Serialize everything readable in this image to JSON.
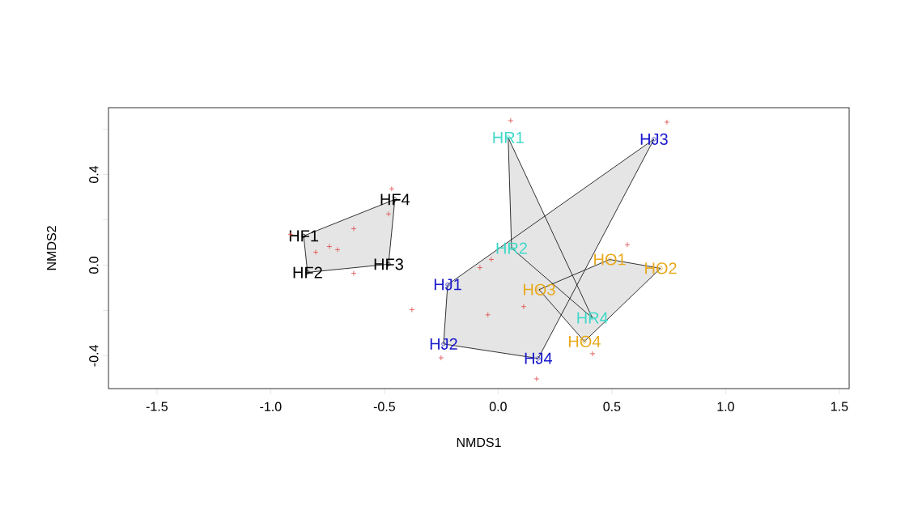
{
  "chart_data": {
    "type": "scatter",
    "xlabel": "NMDS1",
    "ylabel": "NMDS2",
    "xlim": [
      -1.713,
      1.543
    ],
    "ylim": [
      -0.545,
      0.695
    ],
    "xticks": [
      {
        "value": -1.5,
        "label": "-1.5"
      },
      {
        "value": -1.0,
        "label": "-1.0"
      },
      {
        "value": -0.5,
        "label": "-0.5"
      },
      {
        "value": 0,
        "label": "0.0"
      },
      {
        "value": 0.5,
        "label": "0.5"
      },
      {
        "value": 1.0,
        "label": "1.0"
      },
      {
        "value": 1.5,
        "label": "1.5"
      }
    ],
    "yticks": [
      {
        "value": -0.4,
        "label": "-0.4"
      },
      {
        "value": -0.2,
        "label": null
      },
      {
        "value": 0,
        "label": "0.0"
      },
      {
        "value": 0.2,
        "label": null
      },
      {
        "value": 0.4,
        "label": "0.4"
      },
      {
        "value": 0.6,
        "label": null
      }
    ],
    "series": [
      {
        "type": "area",
        "color": "#e5e5e5",
        "x": [
          -0.855,
          -0.454,
          -0.482,
          -0.838
        ],
        "values": [
          0.129,
          0.29,
          0.004,
          -0.032
        ]
      },
      {
        "type": "area",
        "color": "#e5e5e5",
        "x": [
          -0.222,
          0.685,
          0.176,
          -0.24
        ],
        "values": [
          -0.086,
          0.556,
          -0.412,
          -0.348
        ]
      },
      {
        "type": "area",
        "color": "#e5e5e5",
        "x": [
          0.044,
          0.414,
          0.059
        ],
        "values": [
          0.563,
          -0.233,
          0.075
        ]
      },
      {
        "type": "area",
        "color": "#e5e5e5",
        "x": [
          0.18,
          0.49,
          0.714,
          0.379
        ],
        "values": [
          -0.108,
          0.025,
          -0.014,
          -0.337
        ]
      },
      {
        "marker": "cross",
        "color": "#e04848",
        "x": [
          -0.468,
          -0.635,
          -0.482,
          -0.742,
          -0.706,
          -0.802,
          -0.635,
          -0.913,
          0.055,
          -0.379,
          -0.045,
          0.112,
          -0.251,
          0.169,
          -0.08,
          -0.03,
          0.742,
          0.568,
          0.415
        ],
        "values": [
          0.337,
          0.161,
          0.226,
          0.082,
          0.068,
          0.057,
          -0.036,
          0.136,
          0.638,
          -0.197,
          -0.219,
          -0.183,
          -0.409,
          -0.502,
          -0.011,
          0.025,
          0.631,
          0.09,
          -0.391
        ]
      },
      {
        "marker": "circle",
        "color": "#000000",
        "x": [
          -0.855,
          -0.454,
          -0.482,
          -0.838
        ],
        "values": [
          0.129,
          0.29,
          0.004,
          -0.032
        ],
        "value_labels": [
          "HF1",
          "HF4",
          "HF3",
          "HF2"
        ]
      },
      {
        "marker": "circle",
        "color": "#1a1acd",
        "x": [
          -0.222,
          0.685,
          0.176,
          -0.24
        ],
        "values": [
          -0.086,
          0.556,
          -0.412,
          -0.348
        ],
        "value_labels": [
          "HJ1",
          "HJ3",
          "HJ4",
          "HJ2"
        ]
      },
      {
        "marker": "circle",
        "color": "#40d8c8",
        "x": [
          0.044,
          0.414,
          0.059
        ],
        "values": [
          0.563,
          -0.233,
          0.075
        ],
        "value_labels": [
          "HR1",
          "HR4",
          "HR2"
        ]
      },
      {
        "marker": "circle",
        "color": "#e8a81a",
        "x": [
          0.18,
          0.49,
          0.714,
          0.379
        ],
        "values": [
          -0.108,
          0.025,
          -0.014,
          -0.337
        ],
        "value_labels": [
          "HO3",
          "HO1",
          "HO2",
          "HO4"
        ]
      }
    ]
  }
}
